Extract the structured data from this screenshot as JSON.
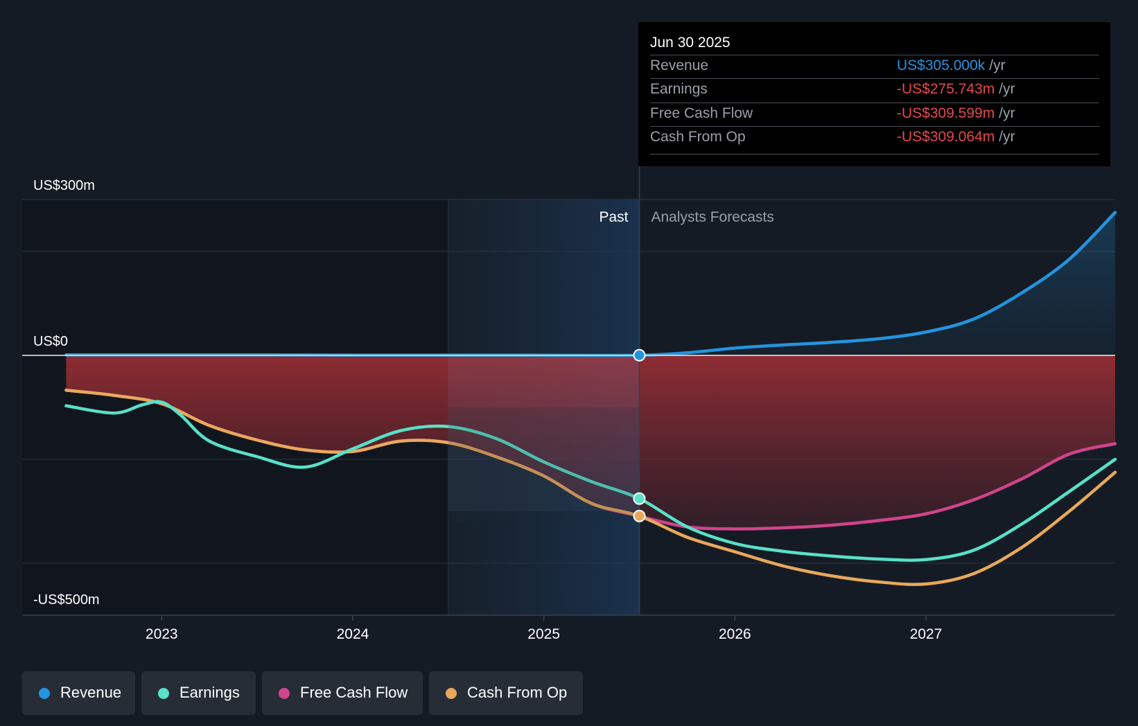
{
  "chart_data": {
    "type": "line",
    "y_axis": {
      "ticks": [
        {
          "value": 300,
          "label": "US$300m"
        },
        {
          "value": 0,
          "label": "US$0"
        },
        {
          "value": -500,
          "label": "-US$500m"
        }
      ],
      "ylim": [
        -500,
        300
      ],
      "unit": "US$m"
    },
    "x_axis": {
      "ticks": [
        {
          "value": 2023,
          "label": "2023"
        },
        {
          "value": 2024,
          "label": "2024"
        },
        {
          "value": 2025,
          "label": "2025"
        },
        {
          "value": 2026,
          "label": "2026"
        },
        {
          "value": 2027,
          "label": "2027"
        }
      ],
      "xlim": [
        2022.27,
        2027.99
      ]
    },
    "regions": {
      "past_label": "Past",
      "forecast_label": "Analysts Forecasts",
      "highlight_start": 2024.5,
      "divider": 2025.5
    },
    "series": [
      {
        "name": "Revenue",
        "color": "#2394df",
        "points": [
          [
            2022.5,
            1
          ],
          [
            2022.75,
            1
          ],
          [
            2023.0,
            1
          ],
          [
            2023.5,
            1
          ],
          [
            2024.0,
            0.5
          ],
          [
            2024.5,
            0.5
          ],
          [
            2025.0,
            0.4
          ],
          [
            2025.5,
            0.3
          ],
          [
            2025.75,
            5
          ],
          [
            2026.0,
            14
          ],
          [
            2026.25,
            20
          ],
          [
            2026.5,
            25
          ],
          [
            2026.75,
            32
          ],
          [
            2027.0,
            45
          ],
          [
            2027.25,
            70
          ],
          [
            2027.5,
            120
          ],
          [
            2027.75,
            185
          ],
          [
            2027.99,
            275
          ]
        ]
      },
      {
        "name": "Earnings",
        "color": "#58e0c9",
        "points": [
          [
            2022.5,
            -97
          ],
          [
            2022.75,
            -111
          ],
          [
            2022.9,
            -95
          ],
          [
            2023.0,
            -90
          ],
          [
            2023.1,
            -115
          ],
          [
            2023.25,
            -165
          ],
          [
            2023.5,
            -195
          ],
          [
            2023.75,
            -215
          ],
          [
            2024.0,
            -180
          ],
          [
            2024.25,
            -145
          ],
          [
            2024.5,
            -137
          ],
          [
            2024.75,
            -160
          ],
          [
            2025.0,
            -205
          ],
          [
            2025.25,
            -243
          ],
          [
            2025.5,
            -275.7
          ],
          [
            2025.75,
            -330
          ],
          [
            2026.0,
            -362
          ],
          [
            2026.25,
            -377
          ],
          [
            2026.5,
            -386
          ],
          [
            2026.75,
            -392
          ],
          [
            2027.0,
            -393
          ],
          [
            2027.25,
            -375
          ],
          [
            2027.5,
            -325
          ],
          [
            2027.75,
            -262
          ],
          [
            2027.99,
            -200
          ]
        ]
      },
      {
        "name": "Free Cash Flow",
        "color": "#d0448b",
        "points": [
          [
            2022.5,
            -67
          ],
          [
            2022.75,
            -77
          ],
          [
            2023.0,
            -93
          ],
          [
            2023.25,
            -135
          ],
          [
            2023.5,
            -163
          ],
          [
            2023.75,
            -182
          ],
          [
            2024.0,
            -185
          ],
          [
            2024.25,
            -165
          ],
          [
            2024.5,
            -168
          ],
          [
            2024.75,
            -195
          ],
          [
            2025.0,
            -232
          ],
          [
            2025.25,
            -285
          ],
          [
            2025.5,
            -309.6
          ],
          [
            2025.75,
            -330
          ],
          [
            2026.0,
            -334
          ],
          [
            2026.25,
            -332
          ],
          [
            2026.5,
            -327
          ],
          [
            2026.75,
            -318
          ],
          [
            2027.0,
            -305
          ],
          [
            2027.25,
            -278
          ],
          [
            2027.5,
            -238
          ],
          [
            2027.75,
            -190
          ],
          [
            2027.99,
            -170
          ]
        ]
      },
      {
        "name": "Cash From Op",
        "color": "#e8a85b",
        "points": [
          [
            2022.5,
            -67
          ],
          [
            2022.75,
            -77
          ],
          [
            2023.0,
            -93
          ],
          [
            2023.25,
            -135
          ],
          [
            2023.5,
            -163
          ],
          [
            2023.75,
            -182
          ],
          [
            2024.0,
            -185
          ],
          [
            2024.25,
            -165
          ],
          [
            2024.5,
            -168
          ],
          [
            2024.75,
            -195
          ],
          [
            2025.0,
            -232
          ],
          [
            2025.25,
            -285
          ],
          [
            2025.5,
            -309.1
          ],
          [
            2025.75,
            -350
          ],
          [
            2026.0,
            -378
          ],
          [
            2026.25,
            -405
          ],
          [
            2026.5,
            -424
          ],
          [
            2026.75,
            -436
          ],
          [
            2027.0,
            -440
          ],
          [
            2027.25,
            -420
          ],
          [
            2027.5,
            -370
          ],
          [
            2027.75,
            -300
          ],
          [
            2027.99,
            -225
          ]
        ]
      }
    ]
  },
  "tooltip": {
    "date": "Jun 30 2025",
    "rows": [
      {
        "label": "Revenue",
        "value": "US$305.000k",
        "unit": "/yr",
        "color": "#2394df"
      },
      {
        "label": "Earnings",
        "value": "-US$275.743m",
        "unit": "/yr",
        "color": "#e5484d"
      },
      {
        "label": "Free Cash Flow",
        "value": "-US$309.599m",
        "unit": "/yr",
        "color": "#e5484d"
      },
      {
        "label": "Cash From Op",
        "value": "-US$309.064m",
        "unit": "/yr",
        "color": "#e5484d"
      }
    ]
  },
  "legend": [
    {
      "label": "Revenue",
      "color": "#2394df"
    },
    {
      "label": "Earnings",
      "color": "#58e0c9"
    },
    {
      "label": "Free Cash Flow",
      "color": "#d0448b"
    },
    {
      "label": "Cash From Op",
      "color": "#e8a85b"
    }
  ]
}
